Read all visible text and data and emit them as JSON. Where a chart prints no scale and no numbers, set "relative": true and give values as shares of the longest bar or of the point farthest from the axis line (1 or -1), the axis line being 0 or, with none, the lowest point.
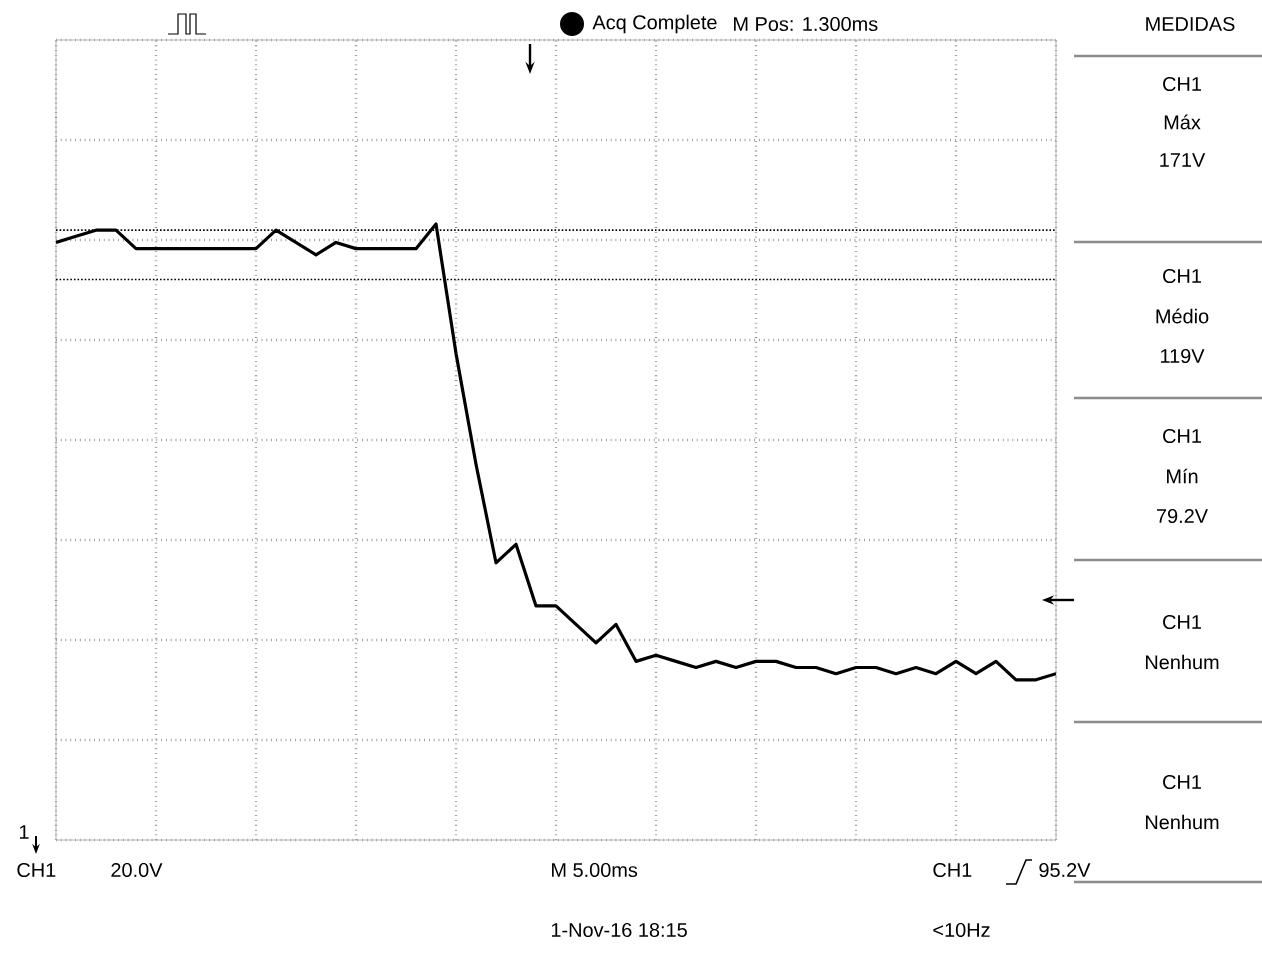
{
  "chart_data": {
    "type": "line",
    "relative": true,
    "color": "#000000",
    "line_style": "solid",
    "grid": true,
    "categories": [
      null,
      null,
      null,
      null,
      null,
      null,
      null,
      null,
      null,
      null,
      null,
      null,
      null,
      null,
      null,
      null,
      null,
      null,
      null,
      null,
      null,
      null,
      null,
      null,
      null,
      null,
      null,
      null,
      null,
      null,
      null,
      null,
      null,
      null,
      null,
      null,
      null,
      null,
      null,
      null,
      null,
      null,
      null,
      null,
      null,
      null,
      null,
      null,
      null,
      null,
      null
    ],
    "values": [
      0.97,
      0.98,
      0.99,
      0.99,
      0.96,
      0.96,
      0.96,
      0.96,
      0.96,
      0.96,
      0.96,
      0.99,
      0.97,
      0.95,
      0.97,
      0.96,
      0.96,
      0.96,
      0.96,
      1.0,
      0.79,
      0.61,
      0.45,
      0.48,
      0.38,
      0.38,
      0.35,
      0.32,
      0.35,
      0.29,
      0.3,
      0.29,
      0.28,
      0.29,
      0.28,
      0.29,
      0.29,
      0.28,
      0.28,
      0.27,
      0.28,
      0.28,
      0.27,
      0.28,
      0.27,
      0.29,
      0.27,
      0.29,
      0.26,
      0.26,
      0.27
    ],
    "ref_lines": [
      {
        "axis": "y",
        "value": 0.99,
        "line_style": "dotted"
      },
      {
        "axis": "y",
        "value": 0.91,
        "line_style": "dotted"
      }
    ],
    "annotations": [
      "Acq Complete",
      "M Pos: 1.300ms",
      "MEDIDAS",
      "CH1",
      "Máx",
      "171V",
      "CH1",
      "Médio",
      "119V",
      "CH1",
      "Mín",
      "79.2V",
      "CH1",
      "Nenhum",
      "CH1",
      "Nenhum",
      "CH1",
      "20.0V",
      "M 5.00ms",
      "CH1",
      "95.2V",
      "1-Nov-16 18:15",
      "<10Hz",
      "1"
    ]
  }
}
